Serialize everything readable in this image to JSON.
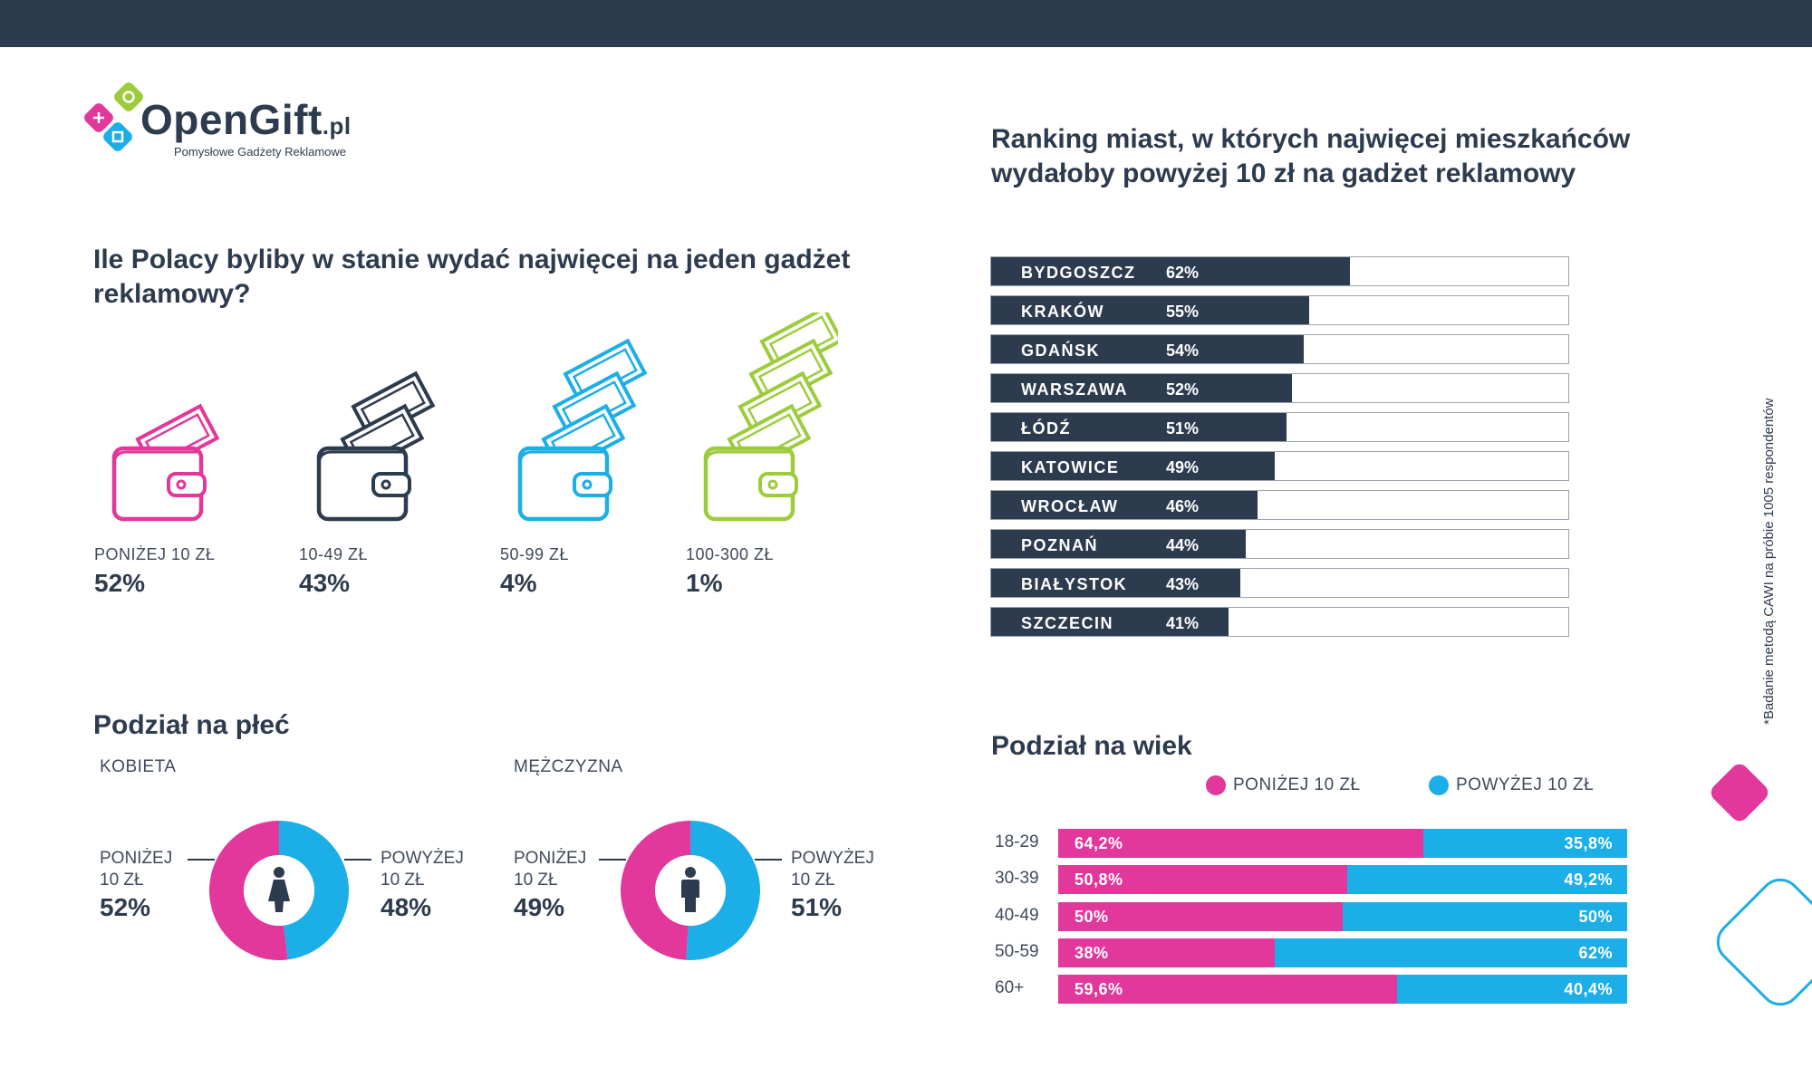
{
  "colors": {
    "navy": "#2d3b4e",
    "pink": "#e2379b",
    "blue": "#1caee6",
    "green": "#9ccc3c",
    "gray": "#9aa3ad"
  },
  "logo": {
    "name": "OpenGift",
    "tld": ".pl",
    "tagline": "Pomysłowe Gadżety Reklamowe"
  },
  "question": {
    "title": "Ile Polacy byliby w stanie wydać najwięcej na jeden gadżet reklamowy?",
    "wallets": [
      {
        "label": "PONIŻEJ 10 ZŁ",
        "value": "52%",
        "color": "#e2379b",
        "bills": 1
      },
      {
        "label": "10-49 ZŁ",
        "value": "43%",
        "color": "#2d3b4e",
        "bills": 2
      },
      {
        "label": "50-99 ZŁ",
        "value": "4%",
        "color": "#1caee6",
        "bills": 3
      },
      {
        "label": "100-300 ZŁ",
        "value": "1%",
        "color": "#9ccc3c",
        "bills": 4
      }
    ]
  },
  "ranking": {
    "title": "Ranking miast, w których najwięcej mieszkańców wydałoby powyżej 10 zł na gadżet reklamowy"
  },
  "gender": {
    "title": "Podział na płeć",
    "female": {
      "label": "KOBIETA",
      "left_label_1": "PONIŻEJ",
      "left_label_2": "10 ZŁ",
      "left_pct": "52%",
      "right_label_1": "POWYŻEJ",
      "right_label_2": "10 ZŁ",
      "right_pct": "48%",
      "pink_share": 52,
      "icon": "woman-icon"
    },
    "male": {
      "label": "MĘŻCZYZNA",
      "left_label_1": "PONIŻEJ",
      "left_label_2": "10 ZŁ",
      "left_pct": "49%",
      "right_label_1": "POWYŻEJ",
      "right_label_2": "10 ZŁ",
      "right_pct": "51%",
      "pink_share": 49,
      "icon": "man-icon"
    }
  },
  "age": {
    "title": "Podział na wiek",
    "legend_below": "PONIŻEJ 10 ZŁ",
    "legend_above": "POWYŻEJ 10 ZŁ"
  },
  "footnote": "*Badanie metodą CAWI na próbie 1005 respondentów",
  "chart_data": [
    {
      "type": "bar",
      "orientation": "horizontal",
      "title": "Ranking miast, w których najwięcej mieszkańców wydałoby powyżej 10 zł na gadżet reklamowy",
      "categories": [
        "BYDGOSZCZ",
        "KRAKÓW",
        "GDAŃSK",
        "WARSZAWA",
        "ŁÓDŹ",
        "KATOWICE",
        "WROCŁAW",
        "POZNAŃ",
        "BIAŁYSTOK",
        "SZCZECIN"
      ],
      "values": [
        62,
        55,
        54,
        52,
        51,
        49,
        46,
        44,
        43,
        41
      ],
      "labels": [
        "62%",
        "55%",
        "54%",
        "52%",
        "51%",
        "49%",
        "46%",
        "44%",
        "43%",
        "41%"
      ],
      "xlim": [
        0,
        100
      ]
    },
    {
      "type": "bar",
      "orientation": "horizontal",
      "stacked": true,
      "title": "Podział na wiek",
      "categories": [
        "18-29",
        "30-39",
        "40-49",
        "50-59",
        "60+"
      ],
      "series": [
        {
          "name": "PONIŻEJ 10 ZŁ",
          "values": [
            64.2,
            50.8,
            50,
            38,
            59.6
          ],
          "labels": [
            "64,2%",
            "50,8%",
            "50%",
            "38%",
            "59,6%"
          ]
        },
        {
          "name": "POWYŻEJ 10 ZŁ",
          "values": [
            35.8,
            49.2,
            50,
            62,
            40.4
          ],
          "labels": [
            "35,8%",
            "49,2%",
            "50%",
            "62%",
            "40,4%"
          ]
        }
      ],
      "xlim": [
        0,
        100
      ]
    },
    {
      "type": "pie",
      "title": "KOBIETA",
      "categories": [
        "PONIŻEJ 10 ZŁ",
        "POWYŻEJ 10 ZŁ"
      ],
      "values": [
        52,
        48
      ]
    },
    {
      "type": "pie",
      "title": "MĘŻCZYZNA",
      "categories": [
        "PONIŻEJ 10 ZŁ",
        "POWYŻEJ 10 ZŁ"
      ],
      "values": [
        49,
        51
      ]
    }
  ]
}
